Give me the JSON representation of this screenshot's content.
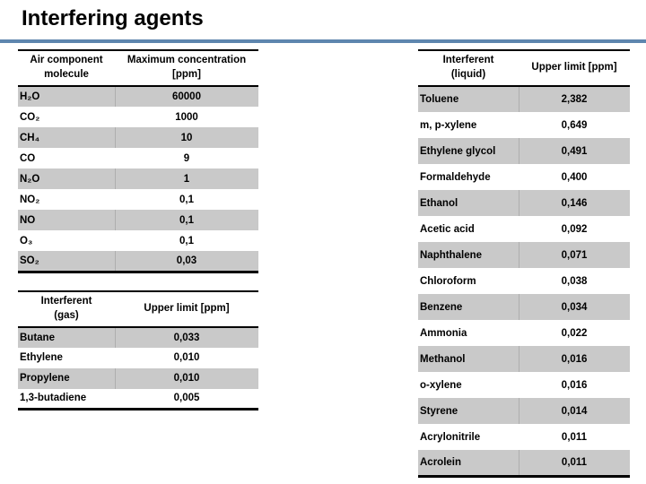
{
  "slide": {
    "title": "Interfering agents"
  },
  "colors": {
    "accent_bar": "#5e86ae",
    "row_stripe": "#c9c9c9",
    "table_border": "#000000"
  },
  "air_table": {
    "headers": {
      "molecule": "Air component\nmolecule",
      "concentration": "Maximum concentration\n[ppm]"
    },
    "rows": [
      {
        "name": "H₂O",
        "value": "60000"
      },
      {
        "name": "CO₂",
        "value": "1000"
      },
      {
        "name": "CH₄",
        "value": "10"
      },
      {
        "name": "CO",
        "value": "9"
      },
      {
        "name": "N₂O",
        "value": "1"
      },
      {
        "name": "NO₂",
        "value": "0,1"
      },
      {
        "name": "NO",
        "value": "0,1"
      },
      {
        "name": "O₃",
        "value": "0,1"
      },
      {
        "name": "SO₂",
        "value": "0,03"
      }
    ]
  },
  "gas_table": {
    "headers": {
      "interferent": "Interferent\n(gas)",
      "limit": "Upper limit [ppm]"
    },
    "rows": [
      {
        "name": "Butane",
        "value": "0,033"
      },
      {
        "name": "Ethylene",
        "value": "0,010"
      },
      {
        "name": "Propylene",
        "value": "0,010"
      },
      {
        "name": "1,3-butadiene",
        "value": "0,005"
      }
    ]
  },
  "liquid_table": {
    "headers": {
      "interferent": "Interferent\n(liquid)",
      "limit": "Upper limit [ppm]"
    },
    "rows": [
      {
        "name": "Toluene",
        "value": "2,382"
      },
      {
        "name": "m, p-xylene",
        "value": "0,649"
      },
      {
        "name": "Ethylene glycol",
        "value": "0,491"
      },
      {
        "name": "Formaldehyde",
        "value": "0,400"
      },
      {
        "name": "Ethanol",
        "value": "0,146"
      },
      {
        "name": "Acetic acid",
        "value": "0,092"
      },
      {
        "name": "Naphthalene",
        "value": "0,071"
      },
      {
        "name": "Chloroform",
        "value": "0,038"
      },
      {
        "name": "Benzene",
        "value": "0,034"
      },
      {
        "name": "Ammonia",
        "value": "0,022"
      },
      {
        "name": "Methanol",
        "value": "0,016"
      },
      {
        "name": "o-xylene",
        "value": "0,016"
      },
      {
        "name": "Styrene",
        "value": "0,014"
      },
      {
        "name": "Acrylonitrile",
        "value": "0,011"
      },
      {
        "name": "Acrolein",
        "value": "0,011"
      }
    ]
  }
}
